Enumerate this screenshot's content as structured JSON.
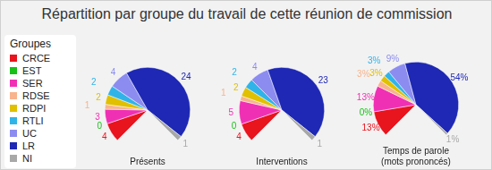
{
  "title": "Répartition par groupe du travail de cette réunion de commission",
  "legend_title": "Groupes",
  "legend": "left",
  "chart_data": [
    {
      "type": "pie",
      "title": "Présents",
      "categories": [
        "CRCE",
        "EST",
        "SER",
        "RDSE",
        "RDPI",
        "RTLI",
        "UC",
        "LR",
        "NI"
      ],
      "values": [
        4,
        0,
        3,
        1,
        2,
        2,
        4,
        24,
        1
      ],
      "colors": [
        "#e8141e",
        "#18c018",
        "#f030b4",
        "#f8b48c",
        "#e0c000",
        "#30b4e8",
        "#8c8cf0",
        "#1e28b4",
        "#a8a8a8"
      ],
      "data_labels": true
    },
    {
      "type": "pie",
      "title": "Interventions",
      "categories": [
        "CRCE",
        "EST",
        "SER",
        "RDSE",
        "RDPI",
        "RTLI",
        "UC",
        "LR",
        "NI"
      ],
      "values": [
        4,
        0,
        5,
        1,
        2,
        2,
        4,
        23,
        1
      ],
      "colors": [
        "#e8141e",
        "#18c018",
        "#f030b4",
        "#f8b48c",
        "#e0c000",
        "#30b4e8",
        "#8c8cf0",
        "#1e28b4",
        "#a8a8a8"
      ],
      "data_labels": true
    },
    {
      "type": "pie",
      "title": [
        "Temps de parole",
        "(mots prononcés)"
      ],
      "categories": [
        "CRCE",
        "EST",
        "SER",
        "RDSE",
        "RDPI",
        "RTLI",
        "UC",
        "LR",
        "NI"
      ],
      "values": [
        13,
        0,
        13,
        3,
        3,
        3,
        9,
        54,
        1
      ],
      "value_labels": [
        "13%",
        "0%",
        "13%",
        "3%",
        "3%",
        "3%",
        "9%",
        "54%",
        "1%"
      ],
      "colors": [
        "#e8141e",
        "#18c018",
        "#f030b4",
        "#f8b48c",
        "#e0c000",
        "#30b4e8",
        "#8c8cf0",
        "#1e28b4",
        "#a8a8a8"
      ],
      "data_labels": true
    }
  ]
}
